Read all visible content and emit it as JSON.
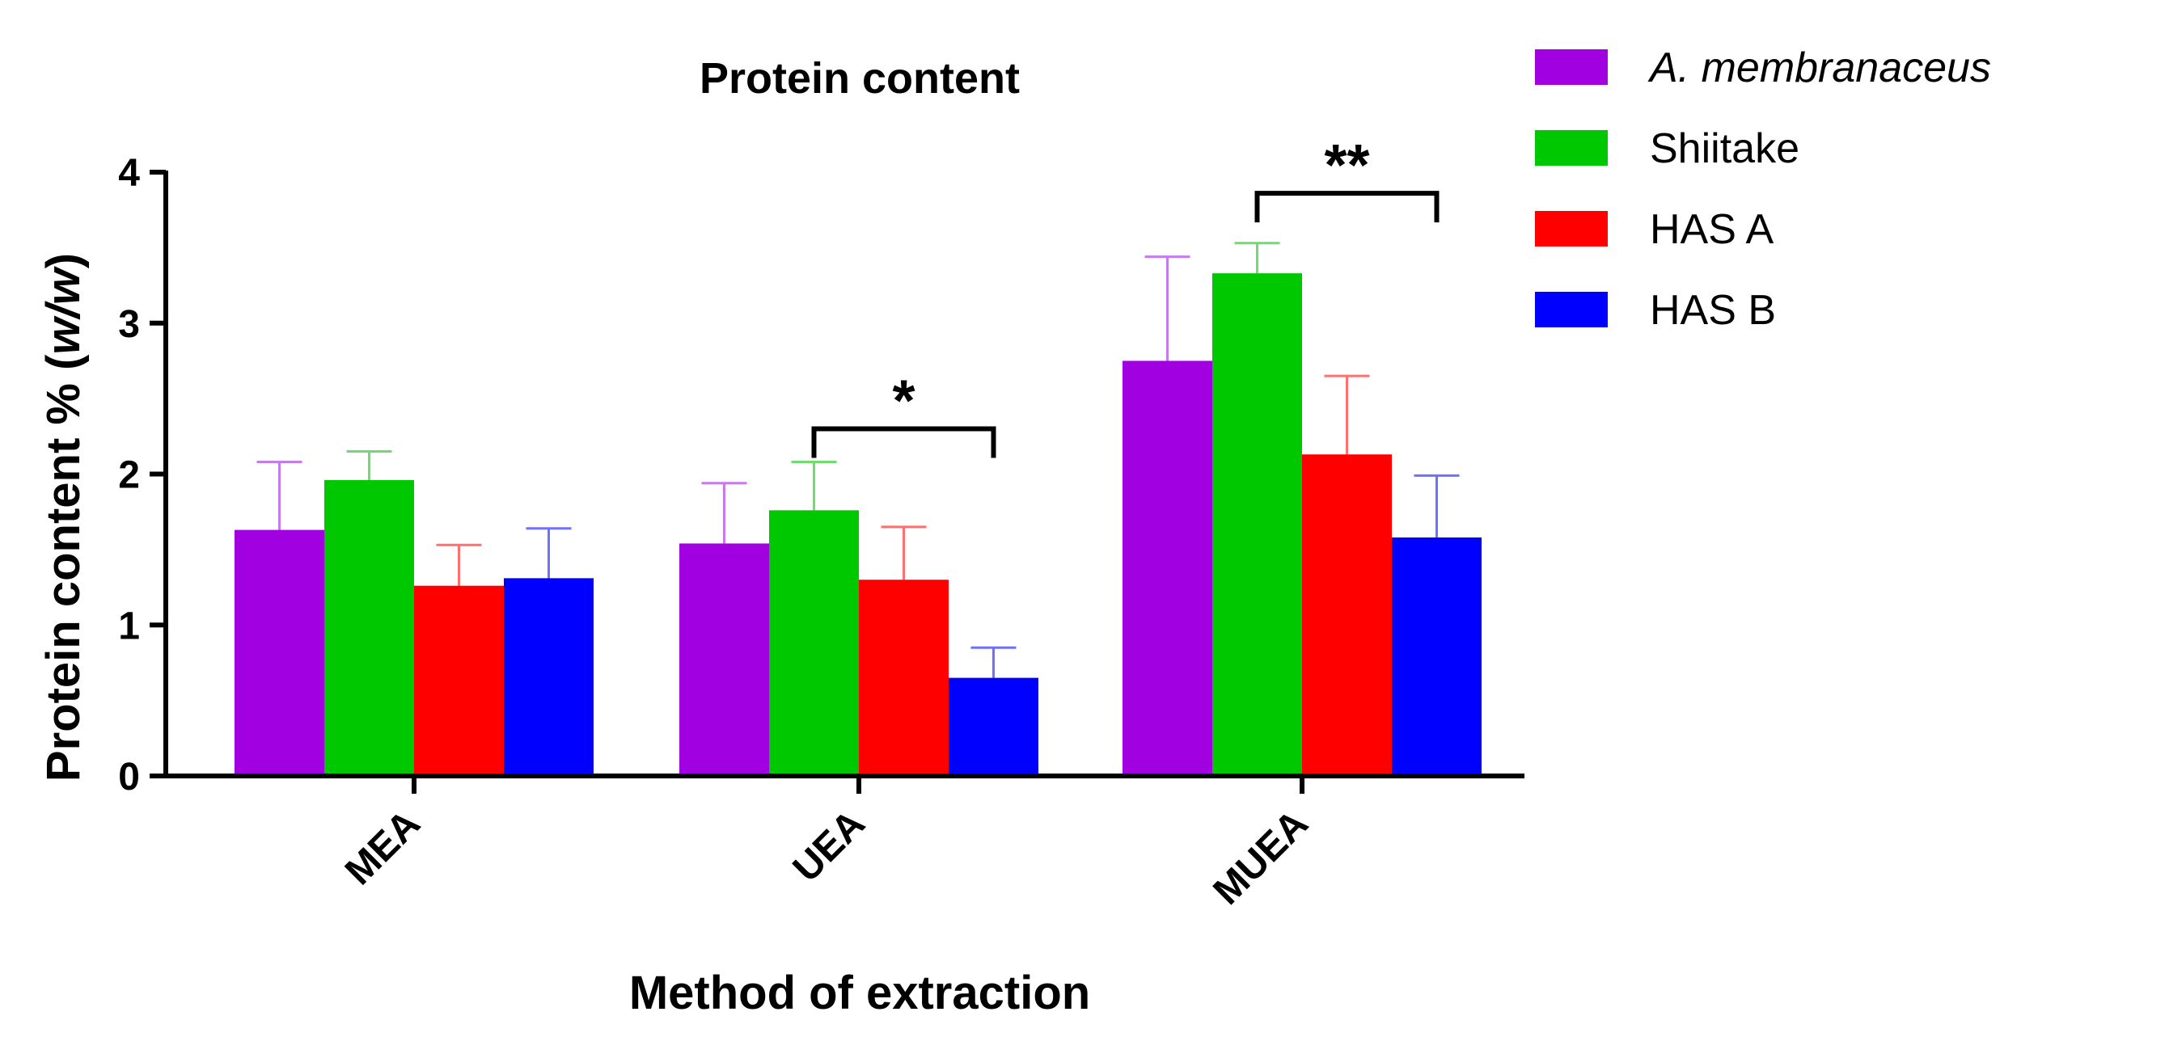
{
  "chart_data": {
    "type": "bar",
    "title": "Protein content",
    "xlabel": "Method of extraction",
    "ylabel": {
      "main": "Protein content % (",
      "italic": "w/w",
      "end": ")"
    },
    "categories": [
      "MEA",
      "UEA",
      "MUEA"
    ],
    "ylim": [
      0,
      4
    ],
    "yticks": [
      0,
      1,
      2,
      3,
      4
    ],
    "grid": false,
    "legend_position": "top-right",
    "series": [
      {
        "name": "A. membranaceus",
        "italic": true,
        "color": "#a100e0",
        "errorColor": "#c779ee",
        "values": [
          1.63,
          1.54,
          2.75
        ],
        "errors": [
          0.45,
          0.4,
          0.69
        ]
      },
      {
        "name": "Shiitake",
        "italic": false,
        "color": "#00c800",
        "errorColor": "#6fdc6f",
        "values": [
          1.96,
          1.76,
          3.33
        ],
        "errors": [
          0.19,
          0.32,
          0.2
        ]
      },
      {
        "name": "HAS A",
        "italic": false,
        "color": "#ff0000",
        "errorColor": "#ff7070",
        "values": [
          1.26,
          1.3,
          2.13
        ],
        "errors": [
          0.27,
          0.35,
          0.52
        ]
      },
      {
        "name": "HAS B",
        "italic": false,
        "color": "#0000ff",
        "errorColor": "#7070ff",
        "values": [
          1.31,
          0.65,
          1.58
        ],
        "errors": [
          0.33,
          0.2,
          0.41
        ]
      }
    ],
    "annotations": [
      {
        "label": "*",
        "category": "UEA",
        "from_series": "Shiitake",
        "to_series": "HAS B",
        "level": 2.3
      },
      {
        "label": "**",
        "category": "MUEA",
        "from_series": "Shiitake",
        "to_series": "HAS B",
        "level": 3.86
      }
    ]
  }
}
